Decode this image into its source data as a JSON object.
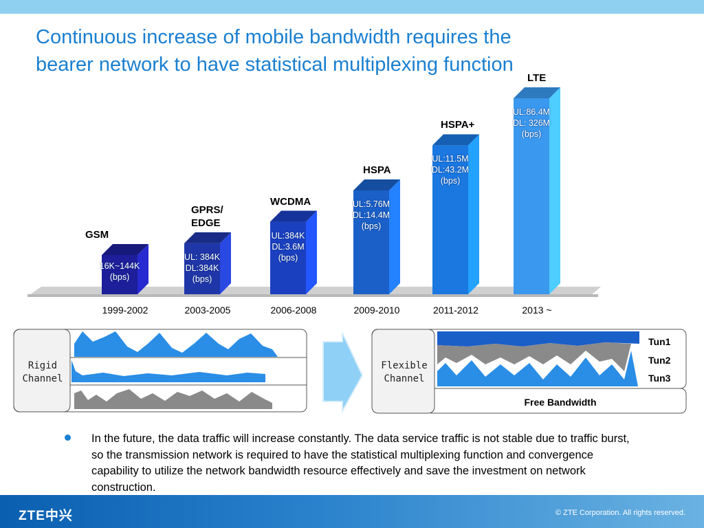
{
  "title": {
    "line1": "Continuous increase of mobile bandwidth requires the",
    "line2": "bearer network to have statistical multiplexing function"
  },
  "chart_data": {
    "type": "bar",
    "categories": [
      "1999-2002",
      "2003-2005",
      "2006-2008",
      "2009-2010",
      "2011-2012",
      "2013 ~"
    ],
    "technologies": [
      "GSM",
      "GPRS/\nEDGE",
      "WCDMA",
      "HSPA",
      "HSPA+",
      "LTE"
    ],
    "bar_labels": [
      [
        "16K~144K",
        "(bps)"
      ],
      [
        "UL: 384K",
        "DL:384K",
        "(bps)"
      ],
      [
        "UL:384K",
        "DL:3.6M",
        "(bps)"
      ],
      [
        "UL:5.76M",
        "DL:14.4M",
        "(bps)"
      ],
      [
        "UL:11.5M",
        "DL:43.2M",
        "(bps)"
      ],
      [
        "UL:86.4M",
        "DL: 326M",
        "(bps)"
      ]
    ],
    "relative_heights": [
      1.0,
      1.3,
      1.85,
      2.65,
      3.8,
      5.0
    ],
    "colors": [
      "#1d1f9a",
      "#1f36a8",
      "#1a40c0",
      "#1a60c8",
      "#1a78e0",
      "#3a98ee"
    ]
  },
  "diagram": {
    "rigid_label": "Rigid\nChannel",
    "flexible_label": "Flexible\nChannel",
    "tunnels": [
      "Tun1",
      "Tun2",
      "Tun3"
    ],
    "free_bandwidth": "Free Bandwidth"
  },
  "body": {
    "bullet": "In the future, the data traffic will increase constantly. The data service traffic is not stable due to traffic burst, so the transmission network is required to have the statistical multiplexing function and convergence capability to utilize the network bandwidth resource effectively and save the investment on network construction."
  },
  "footer": {
    "logo": "ZTE中兴",
    "copyright": "© ZTE Corporation. All rights reserved."
  }
}
